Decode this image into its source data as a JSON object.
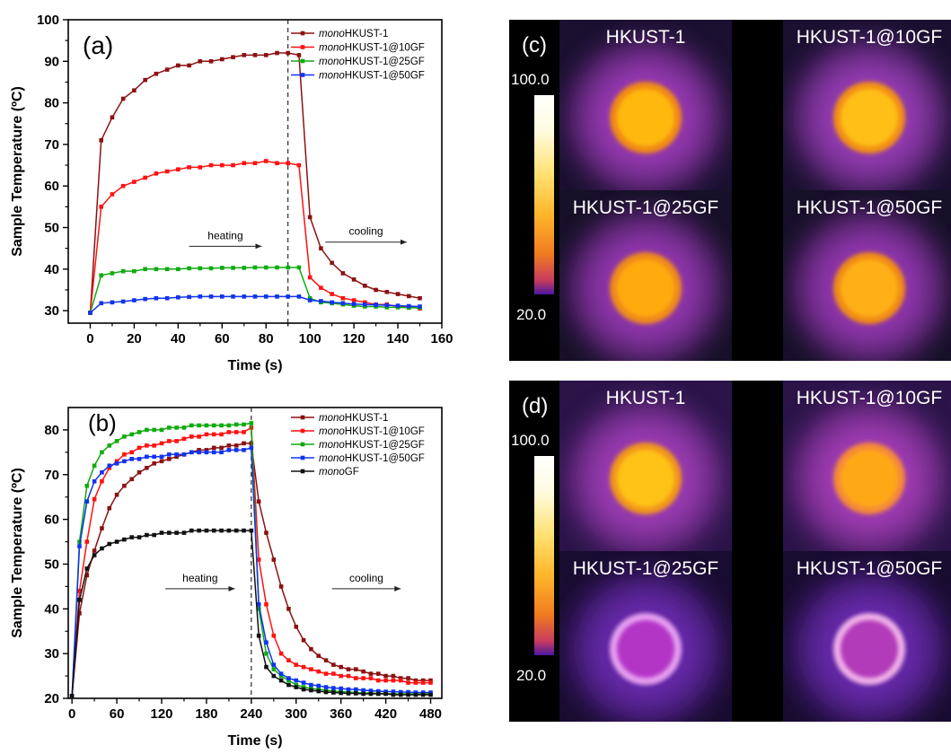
{
  "chart_data": [
    {
      "panel": "(a)",
      "type": "line",
      "xlabel": "Time (s)",
      "ylabel": "Sample Temperature (ºC)",
      "xlim": [
        -10,
        160
      ],
      "ylim": [
        27,
        100
      ],
      "xticks": [
        "0",
        "20",
        "40",
        "60",
        "80",
        "100",
        "120",
        "140",
        "160"
      ],
      "yticks": [
        "30",
        "40",
        "50",
        "60",
        "70",
        "80",
        "90",
        "100"
      ],
      "legend_position": "top-right",
      "series": [
        {
          "name": "monoHKUST-1",
          "legend_italic": "mono",
          "legend_rest": "HKUST-1",
          "color": "#8b1111",
          "x": [
            0,
            5,
            10,
            15,
            20,
            25,
            30,
            35,
            40,
            45,
            50,
            55,
            60,
            65,
            70,
            75,
            80,
            85,
            90,
            95,
            100,
            105,
            110,
            115,
            120,
            125,
            130,
            135,
            140,
            145,
            150
          ],
          "y": [
            29.5,
            71,
            76.5,
            81,
            83,
            85.5,
            87,
            88,
            89,
            89,
            90,
            90,
            90.5,
            91,
            91.5,
            91.5,
            91.5,
            92,
            92,
            91.5,
            52.5,
            45,
            41.5,
            39,
            37.5,
            36,
            35,
            34.5,
            34,
            33.5,
            33
          ]
        },
        {
          "name": "monoHKUST-1@10GF",
          "legend_italic": "mono",
          "legend_rest": "HKUST-1@10GF",
          "color": "#ff1111",
          "x": [
            0,
            5,
            10,
            15,
            20,
            25,
            30,
            35,
            40,
            45,
            50,
            55,
            60,
            65,
            70,
            75,
            80,
            85,
            90,
            95,
            100,
            105,
            110,
            115,
            120,
            125,
            130,
            135,
            140,
            145,
            150
          ],
          "y": [
            29.5,
            55,
            58,
            60,
            61,
            62,
            63,
            63.5,
            64,
            64.5,
            64.5,
            65,
            65,
            65,
            65.5,
            65.5,
            66,
            65.5,
            65.5,
            65,
            38,
            35.5,
            34,
            33,
            32.5,
            32,
            31.5,
            31.5,
            31,
            31,
            30.5
          ]
        },
        {
          "name": "monoHKUST-1@25GF",
          "legend_italic": "mono",
          "legend_rest": "HKUST-1@25GF",
          "color": "#11aa11",
          "x": [
            0,
            5,
            10,
            15,
            20,
            25,
            30,
            35,
            40,
            45,
            50,
            55,
            60,
            65,
            70,
            75,
            80,
            85,
            90,
            95,
            100,
            105,
            110,
            115,
            120,
            125,
            130,
            135,
            140,
            145,
            150
          ],
          "y": [
            29.5,
            38.5,
            39,
            39.5,
            39.5,
            40,
            40,
            40,
            40,
            40.2,
            40.2,
            40.2,
            40.3,
            40.3,
            40.3,
            40.4,
            40.4,
            40.4,
            40.4,
            40.4,
            33,
            32,
            31.8,
            31.5,
            31.2,
            31,
            31,
            30.8,
            30.8,
            30.7,
            30.7
          ]
        },
        {
          "name": "monoHKUST-1@50GF",
          "legend_italic": "mono",
          "legend_rest": "HKUST-1@50GF",
          "color": "#1133ee",
          "x": [
            0,
            5,
            10,
            15,
            20,
            25,
            30,
            35,
            40,
            45,
            50,
            55,
            60,
            65,
            70,
            75,
            80,
            85,
            90,
            95,
            100,
            105,
            110,
            115,
            120,
            125,
            130,
            135,
            140,
            145,
            150
          ],
          "y": [
            29.5,
            31.8,
            32,
            32.2,
            32.5,
            32.8,
            33,
            33,
            33.2,
            33.3,
            33.4,
            33.4,
            33.4,
            33.4,
            33.4,
            33.4,
            33.4,
            33.4,
            33.4,
            33.4,
            32.5,
            32.3,
            32,
            31.8,
            31.6,
            31.5,
            31.4,
            31.3,
            31.2,
            31.1,
            31
          ]
        }
      ],
      "dashed_line_x": 90,
      "annotations": [
        {
          "text": "heating",
          "x1": 45,
          "x2": 78,
          "y": 45.5
        },
        {
          "text": "cooling",
          "x1": 107,
          "x2": 144,
          "y": 46.5
        }
      ]
    },
    {
      "panel": "(b)",
      "type": "line",
      "xlabel": "Time (s)",
      "ylabel": "Sample Temperature (ºC)",
      "xlim": [
        -5,
        495
      ],
      "ylim": [
        20,
        85
      ],
      "xticks": [
        "0",
        "60",
        "120",
        "180",
        "240",
        "300",
        "360",
        "420",
        "480"
      ],
      "yticks": [
        "20",
        "30",
        "40",
        "50",
        "60",
        "70",
        "80"
      ],
      "legend_position": "top-right",
      "series": [
        {
          "name": "monoHKUST-1",
          "legend_italic": "mono",
          "legend_rest": "HKUST-1",
          "color": "#8b1111",
          "x": [
            0,
            10,
            20,
            30,
            40,
            50,
            60,
            70,
            80,
            90,
            100,
            110,
            120,
            130,
            140,
            150,
            160,
            170,
            180,
            190,
            200,
            210,
            220,
            230,
            240,
            250,
            260,
            270,
            280,
            290,
            300,
            310,
            320,
            330,
            340,
            350,
            360,
            370,
            380,
            390,
            400,
            410,
            420,
            430,
            440,
            450,
            460,
            470,
            480
          ],
          "y": [
            20.5,
            39,
            47.5,
            53,
            58,
            62.5,
            65.5,
            67.5,
            69,
            70.5,
            71.5,
            72.5,
            73,
            73.5,
            74,
            74.5,
            75,
            75.5,
            75.5,
            76,
            76,
            76.5,
            76.5,
            77,
            77,
            64,
            57,
            51,
            45,
            40,
            36,
            33,
            31,
            29.5,
            28.5,
            27.5,
            27,
            26.5,
            26.5,
            26,
            25.5,
            25.5,
            25,
            25,
            24.5,
            24.5,
            24,
            24,
            24
          ]
        },
        {
          "name": "monoHKUST-1@10GF",
          "legend_italic": "mono",
          "legend_rest": "HKUST-1@10GF",
          "color": "#ff1111",
          "x": [
            0,
            10,
            20,
            30,
            40,
            50,
            60,
            70,
            80,
            90,
            100,
            110,
            120,
            130,
            140,
            150,
            160,
            170,
            180,
            190,
            200,
            210,
            220,
            230,
            240,
            250,
            260,
            270,
            280,
            290,
            300,
            310,
            320,
            330,
            340,
            350,
            360,
            370,
            380,
            390,
            400,
            410,
            420,
            430,
            440,
            450,
            460,
            470,
            480
          ],
          "y": [
            20.5,
            44,
            55,
            64.5,
            68.5,
            71.5,
            73,
            74.5,
            75,
            76,
            76.5,
            76.5,
            77,
            77.5,
            77.5,
            78,
            78.5,
            78.5,
            79,
            79,
            79,
            79.5,
            79.5,
            79.5,
            80.5,
            51,
            41,
            34,
            30,
            28.5,
            27.5,
            27,
            26.5,
            26,
            25.5,
            25.5,
            25,
            25,
            24.5,
            24.5,
            24.5,
            24,
            24,
            24,
            24,
            23.5,
            23.5,
            23.5,
            23.5
          ]
        },
        {
          "name": "monoHKUST-1@25GF",
          "legend_italic": "mono",
          "legend_rest": "HKUST-1@25GF",
          "color": "#11aa11",
          "x": [
            0,
            10,
            20,
            30,
            40,
            50,
            60,
            70,
            80,
            90,
            100,
            110,
            120,
            130,
            140,
            150,
            160,
            170,
            180,
            190,
            200,
            210,
            220,
            230,
            240,
            250,
            260,
            270,
            280,
            290,
            300,
            310,
            320,
            330,
            340,
            350,
            360,
            370,
            380,
            390,
            400,
            410,
            420,
            430,
            440,
            450,
            460,
            470,
            480
          ],
          "y": [
            20.5,
            55,
            67.5,
            72,
            75,
            76.5,
            77.5,
            78.5,
            79,
            79.5,
            80,
            80,
            80,
            80.5,
            80.5,
            80.5,
            81,
            81,
            81,
            81,
            81,
            81,
            81.2,
            81.2,
            81.5,
            40,
            30,
            26.5,
            25,
            24,
            23,
            22.5,
            22.2,
            22,
            21.8,
            21.6,
            21.5,
            21.4,
            21.3,
            21.2,
            21.2,
            21.1,
            21.1,
            21,
            21,
            21,
            21,
            21,
            21
          ]
        },
        {
          "name": "monoHKUST-1@50GF",
          "legend_italic": "mono",
          "legend_rest": "HKUST-1@50GF",
          "color": "#1133ee",
          "x": [
            0,
            10,
            20,
            30,
            40,
            50,
            60,
            70,
            80,
            90,
            100,
            110,
            120,
            130,
            140,
            150,
            160,
            170,
            180,
            190,
            200,
            210,
            220,
            230,
            240,
            250,
            260,
            270,
            280,
            290,
            300,
            310,
            320,
            330,
            340,
            350,
            360,
            370,
            380,
            390,
            400,
            410,
            420,
            430,
            440,
            450,
            460,
            470,
            480
          ],
          "y": [
            20.5,
            54,
            64,
            68.5,
            70.5,
            72,
            72.5,
            73,
            73.5,
            73.5,
            74,
            74,
            74,
            74.5,
            74.5,
            74.5,
            75,
            75,
            75,
            75,
            75,
            75.5,
            75.5,
            75.5,
            76,
            41,
            32.5,
            27.5,
            25.5,
            24.5,
            24,
            23.5,
            23,
            22.8,
            22.5,
            22.3,
            22.2,
            22,
            22,
            21.8,
            21.7,
            21.6,
            21.5,
            21.5,
            21.4,
            21.4,
            21.3,
            21.3,
            21.3
          ]
        },
        {
          "name": "monoGF",
          "legend_italic": "mono",
          "legend_rest": "GF",
          "color": "#111111",
          "x": [
            0,
            10,
            20,
            30,
            40,
            50,
            60,
            70,
            80,
            90,
            100,
            110,
            120,
            130,
            140,
            150,
            160,
            170,
            180,
            190,
            200,
            210,
            220,
            230,
            240,
            250,
            260,
            270,
            280,
            290,
            300,
            310,
            320,
            330,
            340,
            350,
            360,
            370,
            380,
            390,
            400,
            410,
            420,
            430,
            440,
            450,
            460,
            470,
            480
          ],
          "y": [
            20.5,
            42,
            49,
            52,
            53.5,
            54.5,
            55,
            55.5,
            56,
            56,
            56.5,
            56.5,
            57,
            57,
            57,
            57,
            57.5,
            57.5,
            57.5,
            57.5,
            57.5,
            57.5,
            57.5,
            57.5,
            57.5,
            34,
            27,
            25,
            24,
            23,
            22.5,
            22,
            21.8,
            21.6,
            21.4,
            21.3,
            21.2,
            21.1,
            21.1,
            21,
            21,
            21,
            21,
            20.8,
            20.8,
            20.8,
            20.8,
            20.8,
            20.8
          ]
        }
      ],
      "dashed_line_x": 240,
      "annotations": [
        {
          "text": "heating",
          "x1": 125,
          "x2": 218,
          "y": 44.5
        },
        {
          "text": "cooling",
          "x1": 348,
          "x2": 440,
          "y": 44.5
        }
      ]
    }
  ],
  "thermal_panels": [
    {
      "panel_label": "(c)",
      "scale_max": "100.0",
      "scale_min": "20.0",
      "tiles": [
        {
          "label": "HKUST-1",
          "core": "#ffb810",
          "rim": "#f08a18",
          "halo": "#9c3ab8",
          "bg": "#1a1030"
        },
        {
          "label": "HKUST-1@10GF",
          "core": "#ffbf14",
          "rim": "#f29018",
          "halo": "#9a3cb8",
          "bg": "#1a1030"
        },
        {
          "label": "HKUST-1@25GF",
          "core": "#ffaa10",
          "rim": "#ee8a1a",
          "halo": "#9638b4",
          "bg": "#161028"
        },
        {
          "label": "HKUST-1@50GF",
          "core": "#ffb012",
          "rim": "#f08c18",
          "halo": "#9638b4",
          "bg": "#161028"
        }
      ]
    },
    {
      "panel_label": "(d)",
      "scale_max": "100.0",
      "scale_min": "20.0",
      "tiles": [
        {
          "label": "HKUST-1",
          "core": "#ffc216",
          "rim": "#f0961a",
          "halo": "#a03cb8",
          "bg": "#2a1448"
        },
        {
          "label": "HKUST-1@10GF",
          "core": "#ffa814",
          "rim": "#f48a3a",
          "halo": "#a53cb8",
          "bg": "#2a1448"
        },
        {
          "label": "HKUST-1@25GF",
          "core": "#b236c6",
          "rim": "#e6a0f0",
          "halo": "#6a2ab0",
          "bg": "#180c30"
        },
        {
          "label": "HKUST-1@50GF",
          "core": "#b13ab8",
          "rim": "#f0b0e8",
          "halo": "#6a2ab0",
          "bg": "#180c30"
        }
      ]
    }
  ]
}
